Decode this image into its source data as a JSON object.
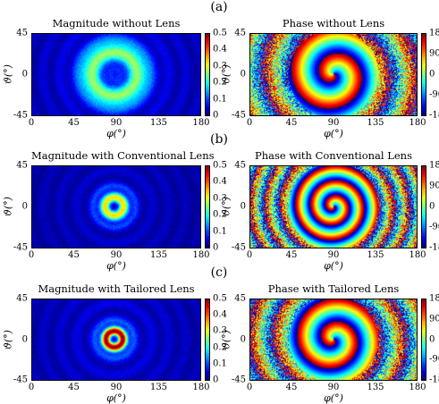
{
  "panel_labels": [
    "(a)",
    "(b)",
    "(c)"
  ],
  "axis_units": {
    "xlabel": "φ(°)",
    "ylabel": "ϑ(°)"
  },
  "chart_data": [
    {
      "type": "heatmap",
      "title": "Magnitude without Lens",
      "quantity": "magnitude",
      "xlabel": "φ(°)",
      "ylabel": "ϑ(°)",
      "xlim": [
        0,
        180
      ],
      "ylim": [
        -45,
        45
      ],
      "xticks": [
        "0",
        "45",
        "90",
        "135",
        "180"
      ],
      "yticks": [
        "45",
        "0",
        "-45"
      ],
      "colorbar": {
        "range": [
          0,
          0.5
        ],
        "ticks": [
          "0.5",
          "0.4",
          "0.3",
          "0.2",
          "0.1",
          "0"
        ],
        "colormap": "jet"
      },
      "features": {
        "center": [
          88,
          0
        ],
        "null_at_center": true,
        "ring_radius_deg": 25,
        "ring_peak": 0.2,
        "background": 0.06
      }
    },
    {
      "type": "heatmap",
      "title": "Phase without Lens",
      "quantity": "phase",
      "xlabel": "φ(°)",
      "ylabel": "ϑ(°)",
      "xlim": [
        0,
        180
      ],
      "ylim": [
        -45,
        45
      ],
      "xticks": [
        "0",
        "45",
        "90",
        "135",
        "180"
      ],
      "yticks": [
        "45",
        "0",
        "-45"
      ],
      "colorbar": {
        "range": [
          -180,
          180
        ],
        "ticks": [
          "180",
          "90",
          "0",
          "-90",
          "-180"
        ],
        "colormap": "jet"
      },
      "features": {
        "center": [
          90,
          0
        ],
        "topological_charge": 1,
        "radial_twist": 6,
        "noisy_edges": true
      }
    },
    {
      "type": "heatmap",
      "title": "Magnitude with Conventional Lens",
      "quantity": "magnitude",
      "xlabel": "φ(°)",
      "ylabel": "ϑ(°)",
      "xlim": [
        0,
        180
      ],
      "ylim": [
        -45,
        45
      ],
      "xticks": [
        "0",
        "45",
        "90",
        "135",
        "180"
      ],
      "yticks": [
        "45",
        "0",
        "-45"
      ],
      "colorbar": {
        "range": [
          0,
          0.5
        ],
        "ticks": [
          "0.5",
          "0.4",
          "0.3",
          "0.2",
          "0.1",
          "0"
        ],
        "colormap": "jet"
      },
      "features": {
        "center": [
          88,
          0
        ],
        "null_at_center": true,
        "ring_radius_deg": 10,
        "ring_peak": 0.3,
        "background": 0.04
      }
    },
    {
      "type": "heatmap",
      "title": "Phase with Conventional Lens",
      "quantity": "phase",
      "xlabel": "φ(°)",
      "ylabel": "ϑ(°)",
      "xlim": [
        0,
        180
      ],
      "ylim": [
        -45,
        45
      ],
      "xticks": [
        "0",
        "45",
        "90",
        "135",
        "180"
      ],
      "yticks": [
        "45",
        "0",
        "-45"
      ],
      "colorbar": {
        "range": [
          -180,
          180
        ],
        "ticks": [
          "180",
          "90",
          "0",
          "-90",
          "-180"
        ],
        "colormap": "jet"
      },
      "features": {
        "center": [
          90,
          0
        ],
        "topological_charge": 1,
        "radial_twist": 11,
        "noisy_edges": true
      }
    },
    {
      "type": "heatmap",
      "title": "Magnitude with Tailored Lens",
      "quantity": "magnitude",
      "xlabel": "φ(°)",
      "ylabel": "ϑ(°)",
      "xlim": [
        0,
        180
      ],
      "ylim": [
        -45,
        45
      ],
      "xticks": [
        "0",
        "45",
        "90",
        "135",
        "180"
      ],
      "yticks": [
        "45",
        "0",
        "-45"
      ],
      "colorbar": {
        "range": [
          0,
          0.5
        ],
        "ticks": [
          "0.5",
          "0.4",
          "0.3",
          "0.2",
          "0.1",
          "0"
        ],
        "colormap": "jet"
      },
      "features": {
        "center": [
          88,
          0
        ],
        "null_at_center": true,
        "ring_radius_deg": 9,
        "ring_peak": 0.45,
        "background": 0.05
      }
    },
    {
      "type": "heatmap",
      "title": "Phase with Tailored Lens",
      "quantity": "phase",
      "xlabel": "φ(°)",
      "ylabel": "ϑ(°)",
      "xlim": [
        0,
        180
      ],
      "ylim": [
        -45,
        45
      ],
      "xticks": [
        "0",
        "45",
        "90",
        "135",
        "180"
      ],
      "yticks": [
        "45",
        "0",
        "-45"
      ],
      "colorbar": {
        "range": [
          -180,
          180
        ],
        "ticks": [
          "180",
          "90",
          "0",
          "-90",
          "-180"
        ],
        "colormap": "jet"
      },
      "features": {
        "center": [
          90,
          0
        ],
        "topological_charge": 1,
        "radial_twist": 7,
        "noisy_edges": true
      }
    }
  ]
}
